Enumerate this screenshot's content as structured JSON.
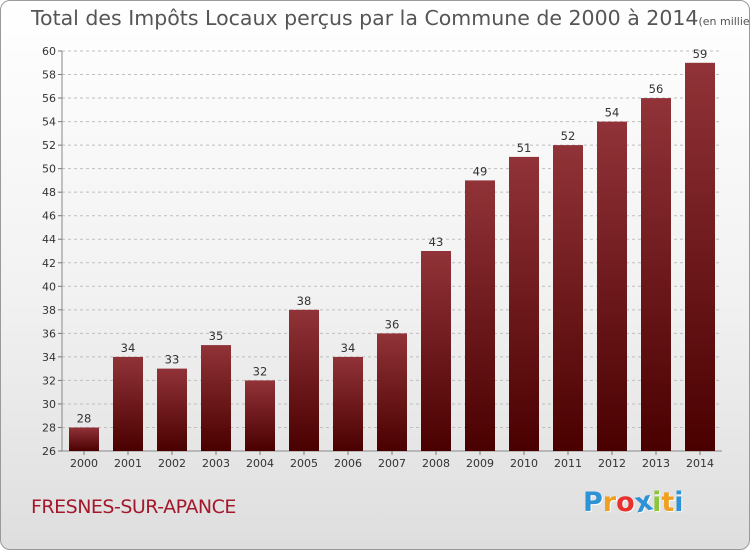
{
  "header": {
    "title": "Total des Impôts Locaux perçus par la Commune de 2000 à 2014",
    "unit": "(en milliers d'€)"
  },
  "footer": {
    "commune": "FRESNES-SUR-APANCE",
    "logo_letters": [
      "P",
      "r",
      "o",
      "x",
      "i",
      "t",
      "i"
    ],
    "logo_colors": [
      "#2e93d6",
      "#f0a01e",
      "#e8302c",
      "#2e93d6",
      "#8cc63f",
      "#f0a01e",
      "#2e93d6"
    ]
  },
  "colors": {
    "bar_top": "#913338",
    "bar_bottom": "#4a0000",
    "grid": "#bfbfbf",
    "title": "#555555",
    "commune": "#a3182a"
  },
  "chart_data": {
    "type": "bar",
    "title": "Total des Impôts Locaux perçus par la Commune de 2000 à 2014",
    "unit": "(en milliers d'€)",
    "categories": [
      "2000",
      "2001",
      "2002",
      "2003",
      "2004",
      "2005",
      "2006",
      "2007",
      "2008",
      "2009",
      "2010",
      "2011",
      "2012",
      "2013",
      "2014"
    ],
    "values": [
      28,
      34,
      33,
      35,
      32,
      38,
      34,
      36,
      43,
      49,
      51,
      52,
      54,
      56,
      59
    ],
    "xlabel": "",
    "ylabel": "",
    "ylim": [
      26,
      60
    ],
    "yticks": [
      26,
      28,
      30,
      32,
      34,
      36,
      38,
      40,
      42,
      44,
      46,
      48,
      50,
      52,
      54,
      56,
      58,
      60
    ],
    "grid": true
  }
}
